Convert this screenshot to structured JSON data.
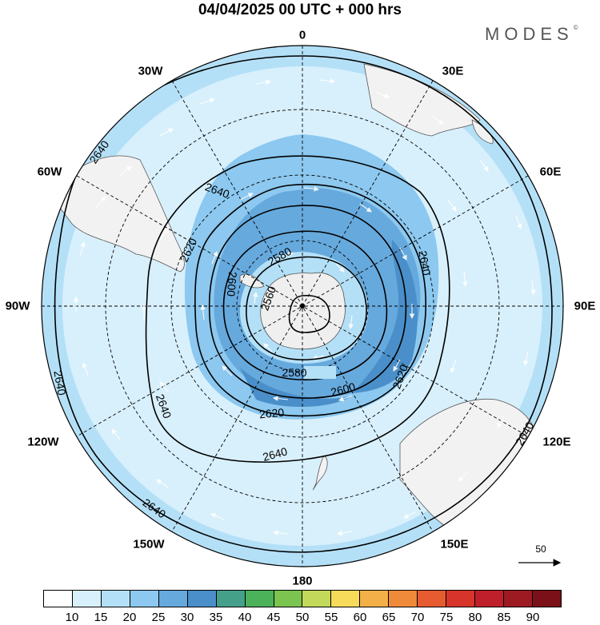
{
  "title": "04/04/2025  00 UTC  + 000 hrs",
  "brand": "MODES",
  "brand_mark": "©",
  "longitude_labels": [
    {
      "text": "0",
      "pos": "top"
    },
    {
      "text": "30E",
      "pos": "top-right"
    },
    {
      "text": "60E",
      "pos": "right-top"
    },
    {
      "text": "90E",
      "pos": "right"
    },
    {
      "text": "120E",
      "pos": "right-bottom"
    },
    {
      "text": "150E",
      "pos": "bottom-right"
    },
    {
      "text": "180",
      "pos": "bottom"
    },
    {
      "text": "150W",
      "pos": "bottom-left"
    },
    {
      "text": "120W",
      "pos": "left-bottom"
    },
    {
      "text": "90W",
      "pos": "left"
    },
    {
      "text": "60W",
      "pos": "left-top"
    },
    {
      "text": "30W",
      "pos": "top-left"
    }
  ],
  "contour_labels": [
    "2560",
    "2580",
    "2600",
    "2620",
    "2640"
  ],
  "vector_reference": "50",
  "colorbar": {
    "levels": [
      "10",
      "15",
      "20",
      "25",
      "30",
      "35",
      "40",
      "45",
      "50",
      "55",
      "60",
      "65",
      "70",
      "75",
      "80",
      "85",
      "90"
    ],
    "colors": [
      "#ffffff",
      "#d8f0fc",
      "#b4e0f7",
      "#8cc8ef",
      "#66a9dd",
      "#4a8fc9",
      "#45a08a",
      "#4bb25a",
      "#7bc44f",
      "#c2d95a",
      "#f6db5a",
      "#f3b048",
      "#ee8a3a",
      "#e65b30",
      "#d7352b",
      "#bf1f2a",
      "#9e1a22",
      "#7c1018"
    ]
  },
  "colors": {
    "land": "#f2f2f2",
    "coast": "#555555",
    "contour": "#000000",
    "vector": "#ffffff"
  }
}
